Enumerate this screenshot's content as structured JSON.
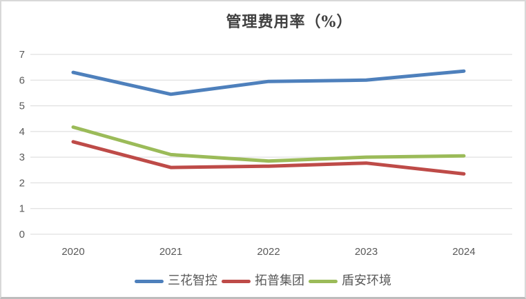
{
  "chart": {
    "title": "管理费用率（%）"
  },
  "chart_data": {
    "type": "line",
    "title": "管理费用率（%）",
    "categories": [
      "2020",
      "2021",
      "2022",
      "2023",
      "2024"
    ],
    "series": [
      {
        "name": "三花智控",
        "color": "#4E80BC",
        "values": [
          6.3,
          5.45,
          5.95,
          6.0,
          6.35
        ]
      },
      {
        "name": "拓普集团",
        "color": "#BE4B48",
        "values": [
          3.6,
          2.6,
          2.65,
          2.77,
          2.35
        ]
      },
      {
        "name": "盾安环境",
        "color": "#9BBB59",
        "values": [
          4.17,
          3.1,
          2.85,
          3.0,
          3.05
        ]
      }
    ],
    "xlabel": "",
    "ylabel": "",
    "ylim": [
      0,
      7
    ],
    "ytick_step": 1,
    "grid": true,
    "legend_position": "bottom",
    "gridline_color": "#d9d9d9",
    "tick_label_color": "#595959"
  }
}
